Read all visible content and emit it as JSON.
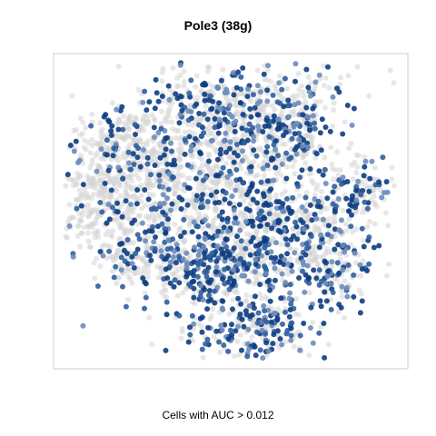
{
  "chart_data": {
    "type": "scatter",
    "title": "Pole3 (38g)",
    "xlabel": "Cells with AUC > 0.012",
    "ylabel": "",
    "grid": false,
    "legend": "none",
    "colors": {
      "background": "#d3d3d3",
      "highlight_dark": "#0d3d82",
      "highlight_mid": "#2f5f9e",
      "highlight_light": "#6b8cba",
      "frame": "#cccccc"
    },
    "series": [
      {
        "name": "",
        "role": "all-cells",
        "color": "#d3d3d3"
      },
      {
        "name": "",
        "role": "auc-above-threshold",
        "color": "#0d3d82"
      }
    ]
  }
}
